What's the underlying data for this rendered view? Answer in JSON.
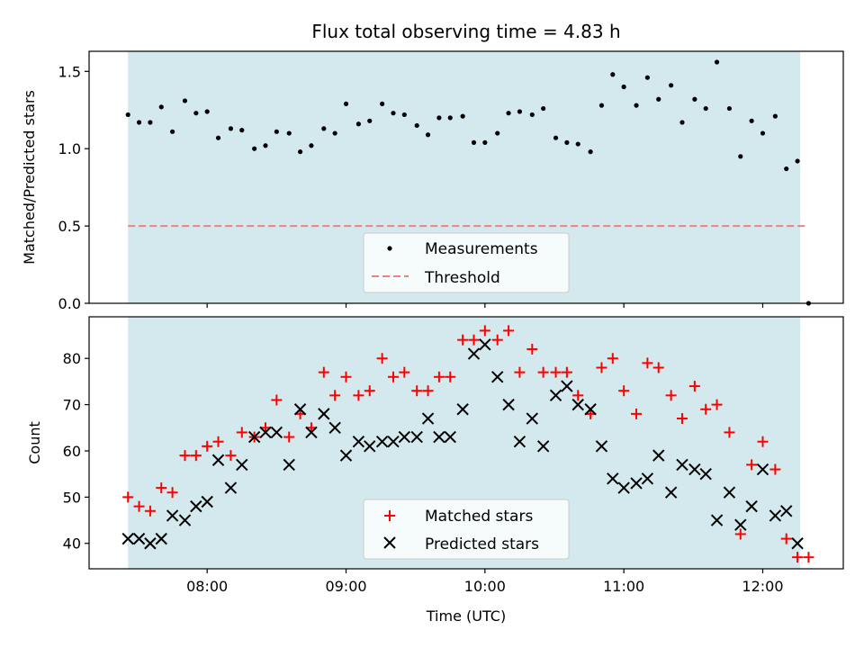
{
  "chart_data": [
    {
      "type": "scatter",
      "title": "Flux total observing time = 4.83 h",
      "xlabel": "",
      "ylabel": "Matched/Predicted stars",
      "ylim": [
        0,
        1.63
      ],
      "yticks": [
        "0.0",
        "0.5",
        "1.0",
        "1.5"
      ],
      "ytick_values": [
        0,
        0.5,
        1.0,
        1.5
      ],
      "xlim_hours": [
        7.15,
        12.58
      ],
      "shaded_span_hours": [
        7.43,
        12.27
      ],
      "shade_color": "#d3e9ee",
      "grid": false,
      "legend_position": "lower center",
      "legend": [
        "Measurements",
        "Threshold"
      ],
      "threshold": {
        "name": "Threshold",
        "value": 0.5,
        "x_range_hours": [
          7.43,
          12.32
        ],
        "color": "#f08080",
        "style": "dashed"
      },
      "series": [
        {
          "name": "Measurements",
          "marker": "dot",
          "color": "#000000",
          "x_hours": [
            7.43,
            7.51,
            7.59,
            7.67,
            7.75,
            7.84,
            7.92,
            8.0,
            8.08,
            8.17,
            8.25,
            8.34,
            8.42,
            8.5,
            8.59,
            8.67,
            8.75,
            8.84,
            8.92,
            9.0,
            9.09,
            9.17,
            9.26,
            9.34,
            9.42,
            9.51,
            9.59,
            9.67,
            9.75,
            9.84,
            9.92,
            10.0,
            10.09,
            10.17,
            10.25,
            10.34,
            10.42,
            10.51,
            10.59,
            10.67,
            10.76,
            10.84,
            10.92,
            11.0,
            11.09,
            11.17,
            11.25,
            11.34,
            11.42,
            11.51,
            11.59,
            11.67,
            11.76,
            11.84,
            11.92,
            12.0,
            12.09,
            12.17,
            12.25,
            12.33
          ],
          "y": [
            1.22,
            1.17,
            1.17,
            1.27,
            1.11,
            1.31,
            1.23,
            1.24,
            1.07,
            1.13,
            1.12,
            1.0,
            1.02,
            1.11,
            1.1,
            0.98,
            1.02,
            1.13,
            1.1,
            1.29,
            1.16,
            1.18,
            1.29,
            1.23,
            1.22,
            1.15,
            1.09,
            1.2,
            1.2,
            1.21,
            1.04,
            1.04,
            1.1,
            1.23,
            1.24,
            1.22,
            1.26,
            1.07,
            1.04,
            1.03,
            0.98,
            1.28,
            1.48,
            1.4,
            1.28,
            1.46,
            1.32,
            1.41,
            1.17,
            1.32,
            1.26,
            1.56,
            1.26,
            0.95,
            1.18,
            1.1,
            1.21,
            0.87,
            0.92,
            0.0
          ]
        }
      ]
    },
    {
      "type": "scatter",
      "title": "",
      "xlabel": "Time (UTC)",
      "ylabel": "Count",
      "ylim": [
        34.5,
        89.0
      ],
      "yticks": [
        "40",
        "50",
        "60",
        "70",
        "80"
      ],
      "ytick_values": [
        40,
        50,
        60,
        70,
        80
      ],
      "xlim_hours": [
        7.15,
        12.58
      ],
      "xticks": [
        "08:00",
        "09:00",
        "10:00",
        "11:00",
        "12:00"
      ],
      "xtick_hours": [
        8,
        9,
        10,
        11,
        12
      ],
      "shaded_span_hours": [
        7.43,
        12.27
      ],
      "shade_color": "#d3e9ee",
      "grid": false,
      "legend_position": "lower center",
      "legend": [
        "Matched stars",
        "Predicted stars"
      ],
      "series": [
        {
          "name": "Matched stars",
          "marker": "plus",
          "color": "#ff0000",
          "x_hours": [
            7.43,
            7.51,
            7.59,
            7.67,
            7.75,
            7.84,
            7.92,
            8.0,
            8.08,
            8.17,
            8.25,
            8.34,
            8.42,
            8.5,
            8.59,
            8.67,
            8.75,
            8.84,
            8.92,
            9.0,
            9.09,
            9.17,
            9.26,
            9.34,
            9.42,
            9.51,
            9.59,
            9.67,
            9.75,
            9.84,
            9.92,
            10.0,
            10.09,
            10.17,
            10.25,
            10.34,
            10.42,
            10.51,
            10.59,
            10.67,
            10.76,
            10.84,
            10.92,
            11.0,
            11.09,
            11.17,
            11.25,
            11.34,
            11.42,
            11.51,
            11.59,
            11.67,
            11.76,
            11.84,
            11.92,
            12.0,
            12.09,
            12.17,
            12.25,
            12.33
          ],
          "y": [
            50,
            48,
            47,
            52,
            51,
            59,
            59,
            61,
            62,
            59,
            64,
            63,
            65,
            71,
            63,
            68,
            65,
            77,
            72,
            76,
            72,
            73,
            80,
            76,
            77,
            73,
            73,
            76,
            76,
            84,
            84,
            86,
            84,
            86,
            77,
            82,
            77,
            77,
            77,
            72,
            68,
            78,
            80,
            73,
            68,
            79,
            78,
            72,
            67,
            74,
            69,
            70,
            64,
            42,
            57,
            62,
            56,
            41,
            37,
            37
          ]
        },
        {
          "name": "Predicted stars",
          "marker": "x",
          "color": "#000000",
          "x_hours": [
            7.43,
            7.51,
            7.59,
            7.67,
            7.75,
            7.84,
            7.92,
            8.0,
            8.08,
            8.17,
            8.25,
            8.34,
            8.42,
            8.5,
            8.59,
            8.67,
            8.75,
            8.84,
            8.92,
            9.0,
            9.09,
            9.17,
            9.26,
            9.34,
            9.42,
            9.51,
            9.59,
            9.67,
            9.75,
            9.84,
            9.92,
            10.0,
            10.09,
            10.17,
            10.25,
            10.34,
            10.42,
            10.51,
            10.59,
            10.67,
            10.76,
            10.84,
            10.92,
            11.0,
            11.09,
            11.17,
            11.25,
            11.34,
            11.42,
            11.51,
            11.59,
            11.67,
            11.76,
            11.84,
            11.92,
            12.0,
            12.09,
            12.17,
            12.25
          ],
          "y": [
            41,
            41,
            40,
            41,
            46,
            45,
            48,
            49,
            58,
            52,
            57,
            63,
            64,
            64,
            57,
            69,
            64,
            68,
            65,
            59,
            62,
            61,
            62,
            62,
            63,
            63,
            67,
            63,
            63,
            69,
            81,
            83,
            76,
            70,
            62,
            67,
            61,
            72,
            74,
            70,
            69,
            61,
            54,
            52,
            53,
            54,
            59,
            51,
            57,
            56,
            55,
            45,
            51,
            44,
            48,
            56,
            46,
            47,
            40
          ]
        }
      ]
    }
  ]
}
